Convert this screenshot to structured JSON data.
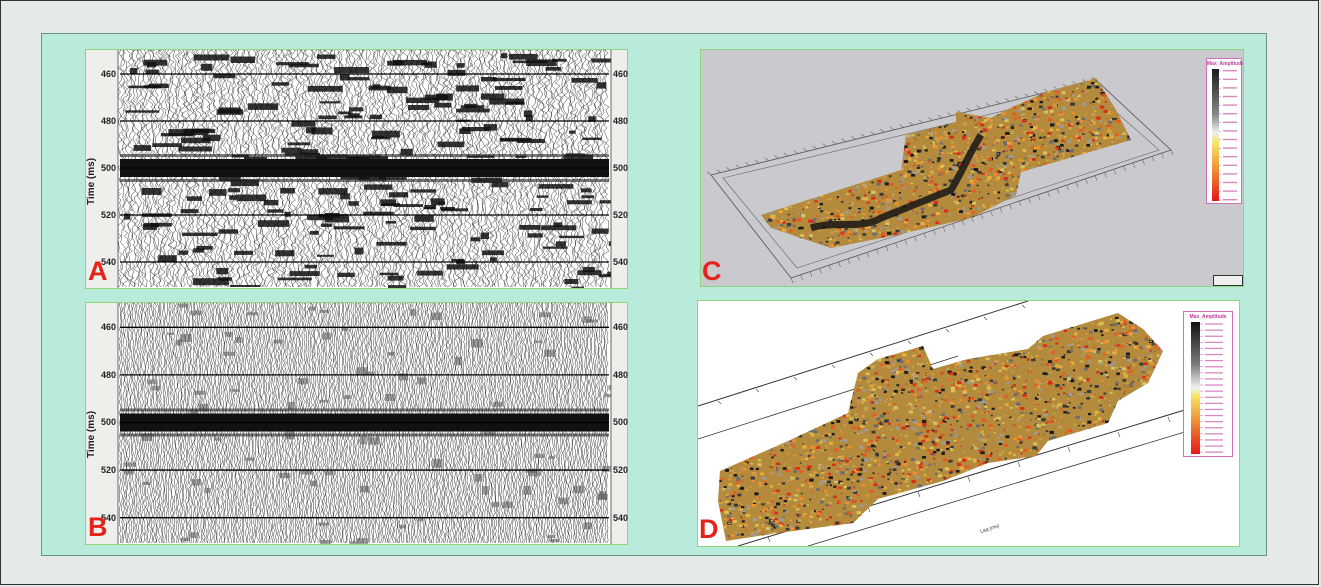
{
  "panels": {
    "a": {
      "letter": "A",
      "y_axis_label": "Time (ms)",
      "time_ticks": [
        "460",
        "480",
        "500",
        "520",
        "540"
      ]
    },
    "b": {
      "letter": "B",
      "y_axis_label": "Time (ms)",
      "time_ticks": [
        "460",
        "480",
        "500",
        "520",
        "540"
      ]
    },
    "c": {
      "letter": "C",
      "legend_title": "Max_Amplitude"
    },
    "d": {
      "letter": "D",
      "legend_title": "Max_Amplitude",
      "axis_label": "Lag (ms)"
    }
  },
  "colors": {
    "background": "#b8ebdc",
    "panel_border": "#8fd57a",
    "letter": "#e5231b",
    "legend_text": "#c03a9a"
  }
}
